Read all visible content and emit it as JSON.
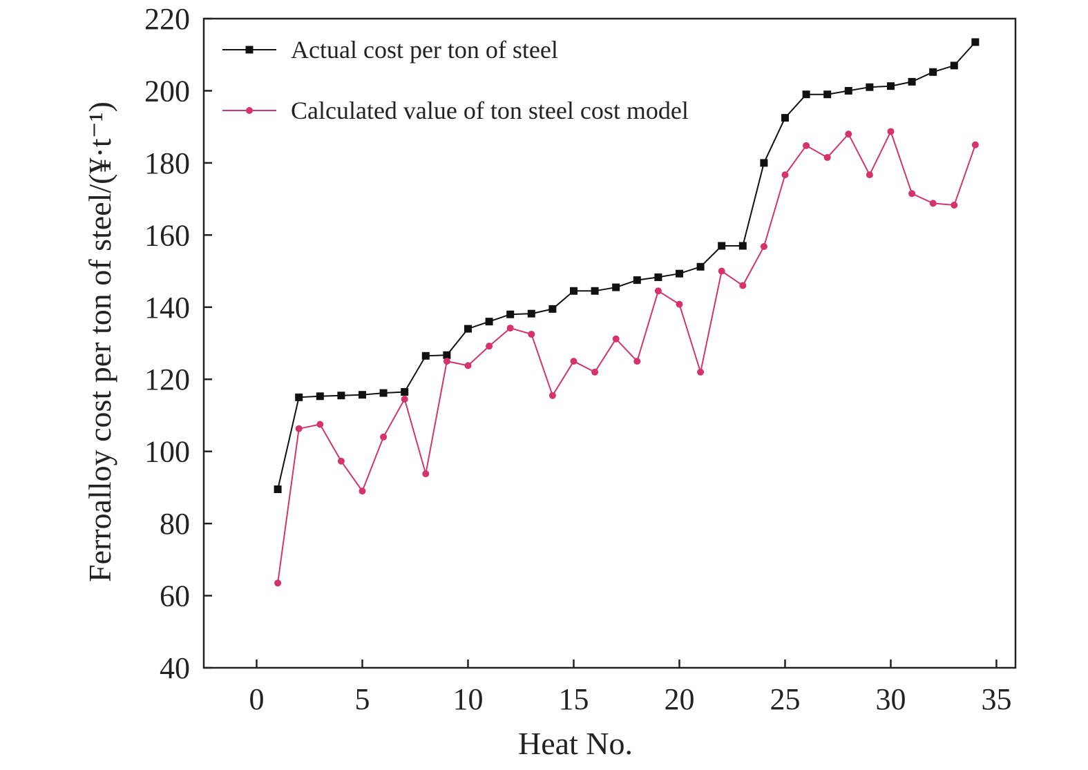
{
  "chart_data": {
    "type": "line",
    "xlabel": "Heat No.",
    "ylabel": "Ferroalloy cost per ton of steel/(¥·t⁻¹)",
    "xlim": [
      -2.5,
      35.9
    ],
    "ylim": [
      40,
      220
    ],
    "xticks": [
      0,
      5,
      10,
      15,
      20,
      25,
      30,
      35
    ],
    "yticks": [
      40,
      60,
      80,
      100,
      120,
      140,
      160,
      180,
      200,
      220
    ],
    "grid": false,
    "legend_position": "top-left",
    "x": [
      1,
      2,
      3,
      4,
      5,
      6,
      7,
      8,
      9,
      10,
      11,
      12,
      13,
      14,
      15,
      16,
      17,
      18,
      19,
      20,
      21,
      22,
      23,
      24,
      25,
      26,
      27,
      28,
      29,
      30,
      31,
      32,
      33,
      34
    ],
    "series": [
      {
        "name": "Actual cost per ton of steel",
        "color": "#111111",
        "marker": "square",
        "values": [
          89.5,
          115,
          115.3,
          115.5,
          115.7,
          116.2,
          116.5,
          126.5,
          126.7,
          134,
          136,
          138,
          138.2,
          139.5,
          144.5,
          144.5,
          145.5,
          147.5,
          148.3,
          149.3,
          151.2,
          157,
          157,
          180,
          192.5,
          199,
          199,
          200,
          201,
          201.3,
          202.5,
          205.2,
          207,
          213.5
        ]
      },
      {
        "name": "Calculated value of ton steel cost model",
        "color": "#d6336c",
        "marker": "circle",
        "values": [
          63.5,
          106.3,
          107.5,
          97.3,
          89,
          104,
          114.5,
          93.8,
          125,
          123.8,
          129.2,
          134.2,
          132.5,
          115.5,
          125,
          122,
          131.2,
          125,
          144.5,
          140.8,
          122,
          150,
          146,
          156.8,
          176.7,
          184.8,
          181.5,
          188,
          176.7,
          188.7,
          171.5,
          168.8,
          168.3,
          185
        ]
      }
    ]
  }
}
